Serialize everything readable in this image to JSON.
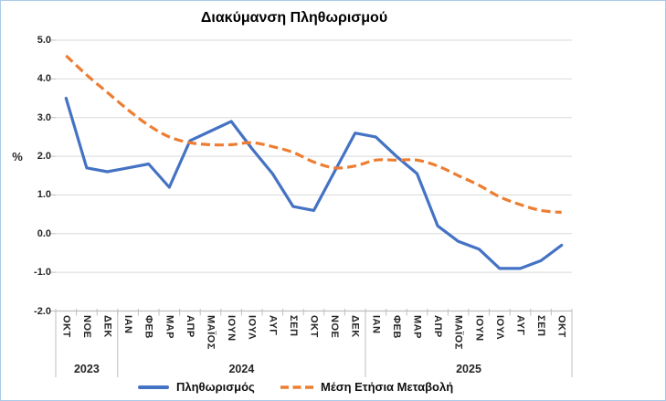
{
  "frame": {
    "background": "#ffffff",
    "border_color": "#a9cbe9"
  },
  "chart_data": {
    "type": "line",
    "title": "Διακύμανση Πληθωρισμού",
    "ylabel": "%",
    "xlabel": "",
    "ylim": [
      -2.0,
      5.0
    ],
    "y_ticks": [
      "5.0",
      "4.0",
      "3.0",
      "2.0",
      "1.0",
      "0.0",
      "-1.0",
      "-2.0"
    ],
    "grid": "horizontal",
    "legend_position": "bottom",
    "categories": [
      "ΟΚΤ",
      "ΝΟΕ",
      "ΔΕΚ",
      "ΙΑΝ",
      "ΦΕΒ",
      "ΜΑΡ",
      "ΑΠΡ",
      "ΜΑΪΟΣ",
      "ΙΟΥΝ",
      "ΙΟΥΛ",
      "ΑΥΓ",
      "ΣΕΠ",
      "ΟΚΤ",
      "ΝΟΕ",
      "ΔΕΚ",
      "ΙΑΝ",
      "ΦΕΒ",
      "ΜΑΡ",
      "ΑΠΡ",
      "ΜΑΪΟΣ",
      "ΙΟΥΝ",
      "ΙΟΥΛ",
      "ΑΥΓ",
      "ΣΕΠ",
      "ΟΚΤ"
    ],
    "year_groups": [
      {
        "label": "2023",
        "months": 3
      },
      {
        "label": "2024",
        "months": 12
      },
      {
        "label": "2025",
        "months": 10
      }
    ],
    "series": [
      {
        "name": "Πληθωρισμός",
        "style": "solid",
        "color": "#4472C4",
        "values": [
          3.5,
          1.7,
          1.6,
          1.7,
          1.8,
          1.2,
          2.4,
          2.65,
          2.9,
          2.2,
          1.55,
          0.7,
          0.6,
          1.6,
          2.6,
          2.5,
          2.0,
          1.55,
          0.2,
          -0.2,
          -0.4,
          -0.9,
          -0.9,
          -0.7,
          -0.3
        ]
      },
      {
        "name": "Μέση Ετήσια Μεταβολή",
        "style": "dashed",
        "color": "#ED7D31",
        "values": [
          4.6,
          4.1,
          3.65,
          3.2,
          2.8,
          2.5,
          2.35,
          2.3,
          2.3,
          2.35,
          2.25,
          2.1,
          1.85,
          1.7,
          1.75,
          1.9,
          1.9,
          1.9,
          1.75,
          1.5,
          1.25,
          0.95,
          0.75,
          0.6,
          0.55
        ]
      }
    ],
    "colors": {
      "gridline": "#D9D9D9",
      "axis": "#BFBFBF",
      "label_text": "#262626"
    }
  }
}
